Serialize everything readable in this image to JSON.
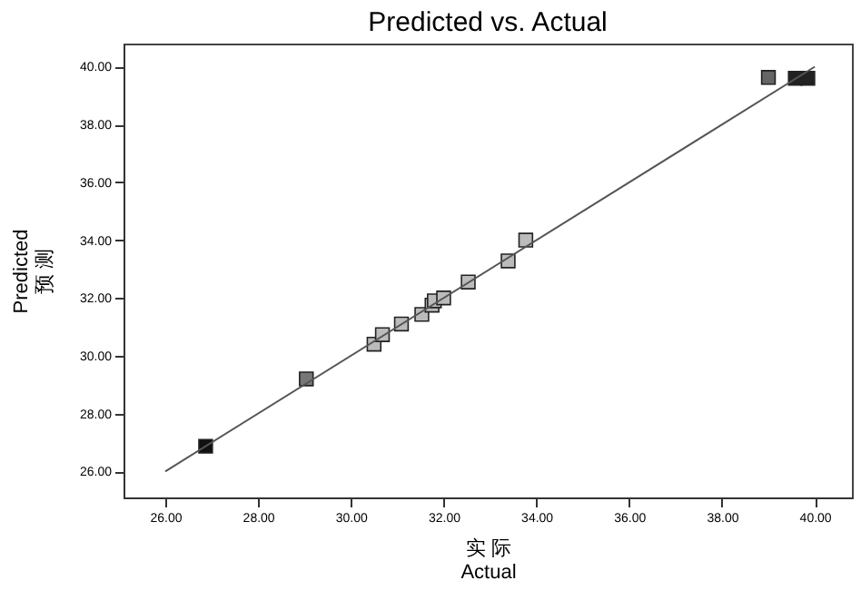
{
  "chart_data": {
    "type": "scatter",
    "title": "Predicted vs. Actual",
    "xlabel": "实 际\nActual",
    "ylabel": "Predicted\n预 测",
    "x": [
      26.87,
      29.04,
      30.5,
      30.68,
      31.09,
      31.53,
      31.75,
      31.8,
      32.0,
      32.53,
      33.39,
      33.77,
      39.0,
      39.58,
      39.85
    ],
    "series": [
      {
        "marker": "square",
        "values": [
          26.87,
          29.2,
          30.4,
          30.73,
          31.1,
          31.43,
          31.75,
          31.9,
          32.0,
          32.55,
          33.28,
          34.0,
          39.63,
          39.6,
          39.6
        ],
        "colors": [
          "#111111",
          "#777777",
          "#bbbbbb",
          "#bbbbbb",
          "#bbbbbb",
          "#bbbbbb",
          "#bbbbbb",
          "#bbbbbb",
          "#bbbbbb",
          "#bbbbbb",
          "#bbbbbb",
          "#bbbbbb",
          "#666666",
          "#222222",
          "#222222"
        ]
      },
      {
        "type": "line",
        "x": [
          26,
          40
        ],
        "values": [
          26,
          40
        ],
        "color": "#555555",
        "line_style": "solid",
        "marker": "none"
      }
    ],
    "grid": false,
    "xlim": [
      25.1,
      40.8
    ],
    "ylim": [
      25.1,
      40.8
    ],
    "xticks": [
      {
        "value": 26,
        "label": "26.00"
      },
      {
        "value": 28,
        "label": "28.00"
      },
      {
        "value": 30,
        "label": "30.00"
      },
      {
        "value": 32,
        "label": "32.00"
      },
      {
        "value": 34,
        "label": "34.00"
      },
      {
        "value": 36,
        "label": "36.00"
      },
      {
        "value": 38,
        "label": "38.00"
      },
      {
        "value": 40,
        "label": "40.00"
      }
    ],
    "yticks": [
      {
        "value": 26,
        "label": "26.00"
      },
      {
        "value": 28,
        "label": "28.00"
      },
      {
        "value": 30,
        "label": "30.00"
      },
      {
        "value": 32,
        "label": "32.00"
      },
      {
        "value": 34,
        "label": "34.00"
      },
      {
        "value": 36,
        "label": "36.00"
      },
      {
        "value": 38,
        "label": "38.00"
      },
      {
        "value": 40,
        "label": "40.00"
      }
    ]
  }
}
